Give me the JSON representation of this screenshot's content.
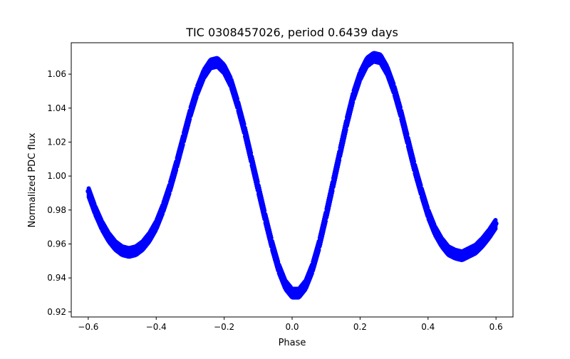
{
  "chart_data": {
    "type": "scatter",
    "title": "TIC 0308457026, period 0.6439 days",
    "xlabel": "Phase",
    "ylabel": "Normalized PDC flux",
    "xlim": [
      -0.65,
      0.65
    ],
    "ylim": [
      0.917,
      1.0785
    ],
    "xticks": [
      -0.6,
      -0.4,
      -0.2,
      0.0,
      0.2,
      0.4,
      0.6
    ],
    "xtick_labels": [
      "−0.6",
      "−0.4",
      "−0.2",
      "0.0",
      "0.2",
      "0.4",
      "0.6"
    ],
    "yticks": [
      0.92,
      0.94,
      0.96,
      0.98,
      1.0,
      1.02,
      1.04,
      1.06
    ],
    "ytick_labels": [
      "0.92",
      "0.94",
      "0.96",
      "0.98",
      "1.00",
      "1.02",
      "1.04",
      "1.06"
    ],
    "grid": false,
    "marker_color": "#0000ff",
    "series": [
      {
        "x": [
          -0.6,
          -0.58,
          -0.56,
          -0.54,
          -0.52,
          -0.5,
          -0.48,
          -0.46,
          -0.44,
          -0.42,
          -0.4,
          -0.38,
          -0.36,
          -0.34,
          -0.32,
          -0.3,
          -0.28,
          -0.26,
          -0.24,
          -0.22,
          -0.2,
          -0.18,
          -0.16,
          -0.14,
          -0.12,
          -0.1,
          -0.08,
          -0.06,
          -0.04,
          -0.02,
          0.0,
          0.02,
          0.04,
          0.06,
          0.08,
          0.1,
          0.12,
          0.14,
          0.16,
          0.18,
          0.2,
          0.22,
          0.24,
          0.26,
          0.28,
          0.3,
          0.32,
          0.34,
          0.36,
          0.38,
          0.4,
          0.42,
          0.44,
          0.46,
          0.48,
          0.5,
          0.52,
          0.54,
          0.56,
          0.58,
          0.6
        ],
        "y": [
          0.991,
          0.98,
          0.971,
          0.964,
          0.959,
          0.956,
          0.955,
          0.956,
          0.959,
          0.964,
          0.971,
          0.981,
          0.993,
          1.007,
          1.022,
          1.037,
          1.05,
          1.06,
          1.066,
          1.067,
          1.063,
          1.055,
          1.042,
          1.027,
          1.01,
          0.993,
          0.976,
          0.96,
          0.946,
          0.936,
          0.931,
          0.931,
          0.936,
          0.946,
          0.96,
          0.977,
          0.995,
          1.013,
          1.031,
          1.047,
          1.059,
          1.067,
          1.07,
          1.069,
          1.062,
          1.051,
          1.037,
          1.021,
          1.005,
          0.991,
          0.978,
          0.968,
          0.961,
          0.956,
          0.954,
          0.953,
          0.955,
          0.957,
          0.961,
          0.966,
          0.972
        ]
      }
    ]
  }
}
